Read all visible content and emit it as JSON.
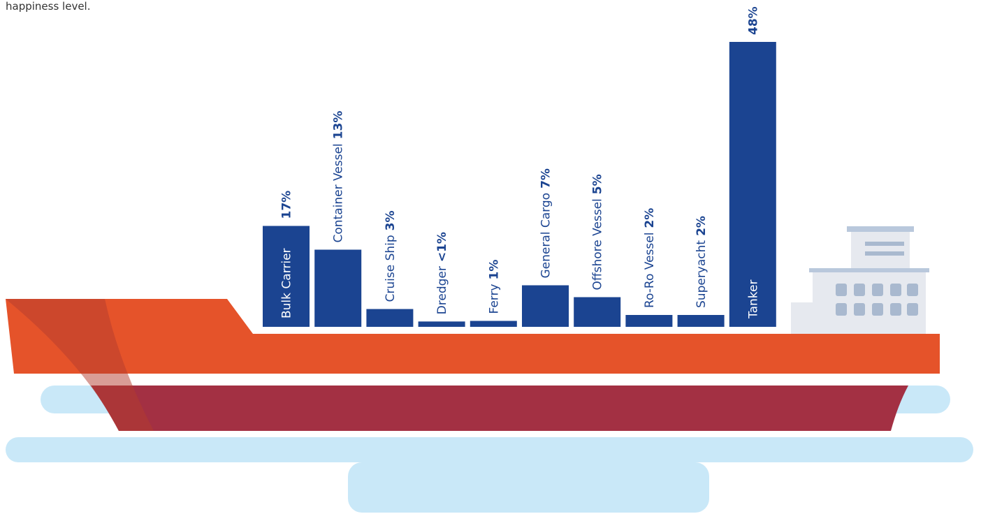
{
  "note": "happiness level.",
  "chart_data": {
    "type": "bar",
    "categories": [
      "Bulk Carrier",
      "Container Vessel",
      "Cruise Ship",
      "Dredger",
      "Ferry",
      "General Cargo",
      "Offshore Vessel",
      "Ro-Ro Vessel",
      "Superyacht",
      "Tanker"
    ],
    "values": [
      17,
      13,
      3,
      0.9,
      1,
      7,
      5,
      2,
      2,
      48
    ],
    "value_labels": [
      "17%",
      "13%",
      "3%",
      "<1%",
      "1%",
      "7%",
      "5%",
      "2%",
      "2%",
      "48%"
    ],
    "color": "#1b4491"
  }
}
